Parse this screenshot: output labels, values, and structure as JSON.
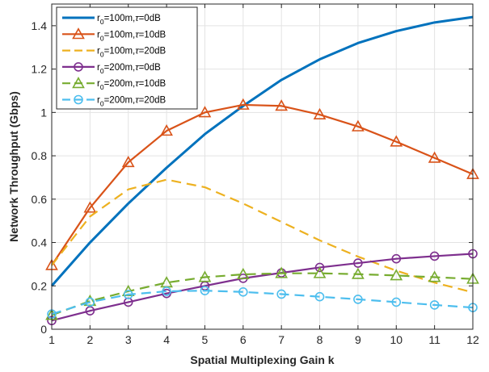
{
  "chart_data": {
    "type": "line",
    "xlabel": "Spatial Multiplexing Gain k",
    "ylabel": "Network Throughput (Gbps)",
    "xlim": [
      1,
      12
    ],
    "ylim": [
      0,
      1.5
    ],
    "xticks": [
      1,
      2,
      3,
      4,
      5,
      6,
      7,
      8,
      9,
      10,
      11,
      12
    ],
    "yticks": [
      0,
      0.2,
      0.4,
      0.6,
      0.8,
      1,
      1.2,
      1.4
    ],
    "ytick_labels": [
      "0",
      "0.2",
      "0.4",
      "0.6",
      "0.8",
      "1",
      "1.2",
      "1.4"
    ],
    "grid": true,
    "legend_position": "top-left",
    "x": [
      1,
      2,
      3,
      4,
      5,
      6,
      7,
      8,
      9,
      10,
      11,
      12
    ],
    "series": [
      {
        "name": "r0=100m,τ=0dB",
        "name_parts": {
          "pre": "r",
          "sub": "0",
          "post": "=100m,",
          "tau": "τ",
          "suffix": "=0dB"
        },
        "color": "#0072BD",
        "dash": "solid",
        "marker": "none",
        "values": [
          0.2,
          0.4,
          0.58,
          0.745,
          0.9,
          1.03,
          1.15,
          1.245,
          1.32,
          1.375,
          1.415,
          1.44
        ]
      },
      {
        "name": "r0=100m,τ=10dB",
        "name_parts": {
          "pre": "r",
          "sub": "0",
          "post": "=100m,",
          "tau": "τ",
          "suffix": "=10dB"
        },
        "color": "#D95319",
        "dash": "solid",
        "marker": "triangle",
        "values": [
          0.295,
          0.56,
          0.77,
          0.915,
          1.0,
          1.035,
          1.03,
          0.99,
          0.935,
          0.865,
          0.79,
          0.715
        ]
      },
      {
        "name": "r0=100m,τ=20dB",
        "name_parts": {
          "pre": "r",
          "sub": "0",
          "post": "=100m,",
          "tau": "τ",
          "suffix": "=20dB"
        },
        "color": "#EDB120",
        "dash": "dashed",
        "marker": "none",
        "values": [
          0.295,
          0.52,
          0.645,
          0.69,
          0.655,
          0.58,
          0.495,
          0.41,
          0.335,
          0.27,
          0.215,
          0.17
        ]
      },
      {
        "name": "r0=200m,τ=0dB",
        "name_parts": {
          "pre": "r",
          "sub": "0",
          "post": "=200m,",
          "tau": "τ",
          "suffix": "=0dB"
        },
        "color": "#7E2F8E",
        "dash": "solid",
        "marker": "circle",
        "values": [
          0.04,
          0.085,
          0.125,
          0.165,
          0.2,
          0.235,
          0.26,
          0.285,
          0.305,
          0.325,
          0.337,
          0.348
        ]
      },
      {
        "name": "r0=200m,τ=10dB",
        "name_parts": {
          "pre": "r",
          "sub": "0",
          "post": "=200m,",
          "tau": "τ",
          "suffix": "=10dB"
        },
        "color": "#77AC30",
        "dash": "dashed",
        "marker": "triangle",
        "values": [
          0.065,
          0.13,
          0.175,
          0.215,
          0.24,
          0.253,
          0.258,
          0.258,
          0.254,
          0.248,
          0.24,
          0.232
        ]
      },
      {
        "name": "r0=200m,τ=20dB",
        "name_parts": {
          "pre": "r",
          "sub": "0",
          "post": "=200m,",
          "tau": "τ",
          "suffix": "=20dB"
        },
        "color": "#4DBEEE",
        "dash": "dashed",
        "marker": "circle",
        "values": [
          0.07,
          0.125,
          0.16,
          0.175,
          0.178,
          0.172,
          0.162,
          0.15,
          0.138,
          0.125,
          0.112,
          0.1
        ]
      }
    ]
  }
}
